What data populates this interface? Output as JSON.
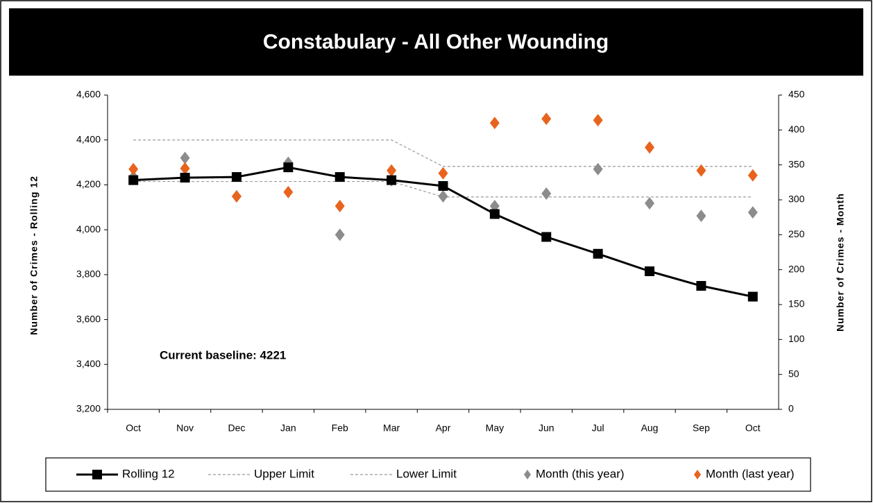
{
  "chart_data": {
    "type": "line",
    "title": "Constabulary - All Other Wounding",
    "y_label": "Number of Crimes  -  Rolling 12",
    "y2_label": "Number of Crimes  -  Month",
    "annotation": "Current baseline: 4221",
    "categories": [
      "Oct",
      "Nov",
      "Dec",
      "Jan",
      "Feb",
      "Mar",
      "Apr",
      "May",
      "Jun",
      "Jul",
      "Aug",
      "Sep",
      "Oct"
    ],
    "ylim": [
      3200,
      4600
    ],
    "yticks": [
      {
        "value": 3200,
        "label": "3,200"
      },
      {
        "value": 3400,
        "label": "3,400"
      },
      {
        "value": 3600,
        "label": "3,600"
      },
      {
        "value": 3800,
        "label": "3,800"
      },
      {
        "value": 4000,
        "label": "4,000"
      },
      {
        "value": 4200,
        "label": "4,200"
      },
      {
        "value": 4400,
        "label": "4,400"
      },
      {
        "value": 4600,
        "label": "4,600"
      }
    ],
    "y2lim": [
      0,
      450
    ],
    "y2ticks": [
      0,
      50,
      100,
      150,
      200,
      250,
      300,
      350,
      400,
      450
    ],
    "grid": false,
    "legend": "bottom",
    "series": [
      {
        "name": "Rolling 12",
        "color": "#000000",
        "line": "solid",
        "marker": "square",
        "values": [
          4221,
          4232,
          4235,
          4278,
          4235,
          4221,
          4195,
          4070,
          3968,
          3893,
          3815,
          3750,
          3702
        ]
      },
      {
        "name": "Upper Limit",
        "color": "#999999",
        "line": "dashed",
        "marker": "none",
        "values": [
          4400,
          4400,
          4400,
          4400,
          4400,
          4400,
          4282,
          4282,
          4282,
          4282,
          4282,
          4282,
          4282
        ]
      },
      {
        "name": "Lower Limit",
        "color": "#999999",
        "line": "dashed",
        "marker": "none",
        "values": [
          4215,
          4215,
          4215,
          4215,
          4215,
          4215,
          4146,
          4146,
          4146,
          4146,
          4146,
          4146,
          4146
        ]
      },
      {
        "name": "Month (this year)",
        "color": "#8c8c8c",
        "line": "none",
        "marker": "diamond",
        "axis": "y2",
        "values": [
          333,
          360,
          305,
          353,
          250,
          328,
          305,
          291,
          309,
          344,
          295,
          277,
          282
        ]
      },
      {
        "name": "Month (last year)",
        "color": "#e8641e",
        "line": "none",
        "marker": "diamond",
        "axis": "y2",
        "values": [
          344,
          345,
          305,
          311,
          291,
          342,
          338,
          410,
          416,
          414,
          375,
          342,
          335
        ]
      }
    ]
  }
}
